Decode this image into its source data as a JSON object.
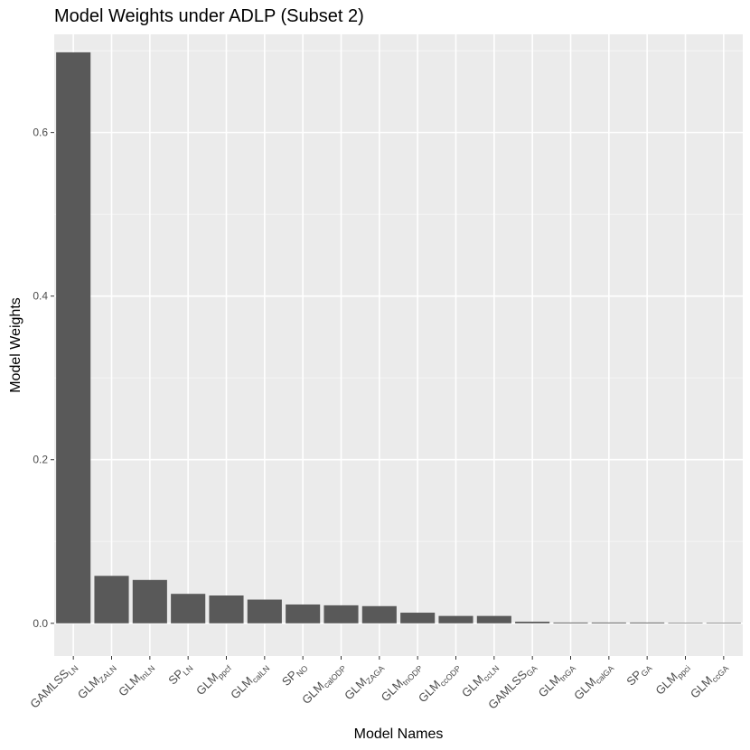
{
  "chart_data": {
    "type": "bar",
    "title": "Model Weights under ADLP (Subset 2)",
    "xlabel": "Model Names",
    "ylabel": "Model Weights",
    "ylim": [
      -0.04,
      0.72
    ],
    "yticks": [
      0.0,
      0.2,
      0.4,
      0.6
    ],
    "ytick_labels": [
      "0.0",
      "0.2",
      "0.4",
      "0.6"
    ],
    "grid": true,
    "colors": {
      "bar": "#595959",
      "panel": "#ebebeb",
      "grid_major": "#ffffff",
      "grid_minor": "#f5f5f5",
      "tick_text": "#4d4d4d"
    },
    "categories": [
      {
        "main": "GAMLSS",
        "sub": "LN"
      },
      {
        "main": "GLM",
        "sub": "ZALN"
      },
      {
        "main": "GLM",
        "sub": "tnLN"
      },
      {
        "main": "SP",
        "sub": "LN"
      },
      {
        "main": "GLM",
        "sub": "ppcf"
      },
      {
        "main": "GLM",
        "sub": "calLN"
      },
      {
        "main": "SP",
        "sub": "NO"
      },
      {
        "main": "GLM",
        "sub": "calODP"
      },
      {
        "main": "GLM",
        "sub": "ZAGA"
      },
      {
        "main": "GLM",
        "sub": "tnODP"
      },
      {
        "main": "GLM",
        "sub": "ccODP"
      },
      {
        "main": "GLM",
        "sub": "ccLN"
      },
      {
        "main": "GAMLSS",
        "sub": "GA"
      },
      {
        "main": "GLM",
        "sub": "tnGA"
      },
      {
        "main": "GLM",
        "sub": "calGA"
      },
      {
        "main": "SP",
        "sub": "GA"
      },
      {
        "main": "GLM",
        "sub": "ppci"
      },
      {
        "main": "GLM",
        "sub": "ccGA"
      }
    ],
    "values": [
      0.698,
      0.058,
      0.053,
      0.036,
      0.034,
      0.029,
      0.023,
      0.022,
      0.021,
      0.013,
      0.009,
      0.009,
      0.002,
      0.001,
      0.001,
      0.001,
      0.0003,
      0.0002
    ]
  }
}
